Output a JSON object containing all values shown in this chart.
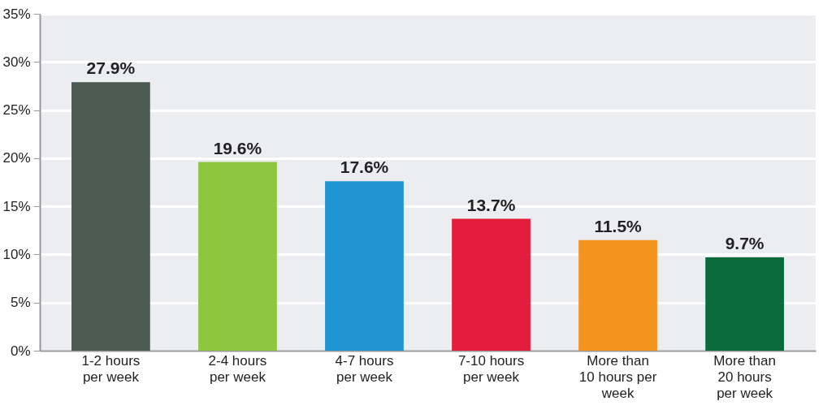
{
  "chart_data": {
    "type": "bar",
    "categories": [
      "1-2 hours\nper week",
      "2-4 hours\nper week",
      "4-7 hours\nper week",
      "7-10 hours\nper week",
      "More than\n10 hours per\nweek",
      "More than\n20 hours\nper week"
    ],
    "values": [
      27.9,
      19.6,
      17.6,
      13.7,
      11.5,
      9.7
    ],
    "colors": [
      "#4a5a50",
      "#8dc63f",
      "#1f96d3",
      "#e31d3b",
      "#f39320",
      "#0b6b3a"
    ],
    "value_labels": [
      "27.9%",
      "19.6%",
      "17.6%",
      "13.7%",
      "11.5%",
      "9.7%"
    ],
    "ylim": [
      0,
      35
    ],
    "yticks": [
      {
        "value": 0,
        "label": "0%"
      },
      {
        "value": 5,
        "label": "5%"
      },
      {
        "value": 10,
        "label": "10%"
      },
      {
        "value": 15,
        "label": "15%"
      },
      {
        "value": 20,
        "label": "20%"
      },
      {
        "value": 25,
        "label": "25%"
      },
      {
        "value": 30,
        "label": "30%"
      },
      {
        "value": 35,
        "label": "35%"
      }
    ],
    "grid": "y"
  }
}
